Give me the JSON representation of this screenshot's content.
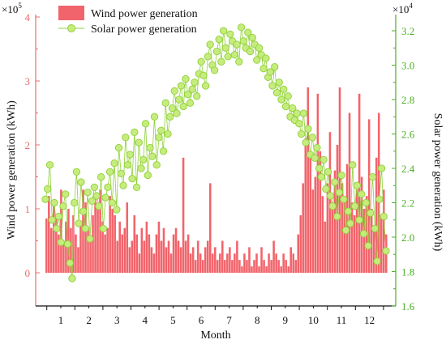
{
  "colors": {
    "wind": "#f2646b",
    "solar": "#8fd03a",
    "solar_fill": "#c6ec7d",
    "left_axis": "#e86c6c",
    "right_axis": "#4caf24",
    "text": "#111111"
  },
  "chart_data": {
    "type": "bar+line-scatter",
    "xlabel": "Month",
    "ylabel_left": "Wind power generation (kWh)",
    "ylabel_right": "Solar power generation (kWh)",
    "left_multiplier": "×10",
    "left_exponent": "5",
    "right_multiplier": "×10",
    "right_exponent": "4",
    "left_ylim": [
      -0.55,
      4.0
    ],
    "left_ticks": [
      "0",
      "1",
      "2",
      "3",
      "4"
    ],
    "right_ylim": [
      1.6,
      3.3
    ],
    "right_ticks": [
      "1.6",
      "1.8",
      "2.0",
      "2.2",
      "2.4",
      "2.6",
      "2.8",
      "3.0",
      "3.2"
    ],
    "x_ticks": [
      "1",
      "2",
      "3",
      "4",
      "5",
      "6",
      "7",
      "8",
      "9",
      "10",
      "11",
      "12"
    ],
    "legend": {
      "position": "top",
      "entries": [
        "Wind power generation",
        "Solar power generation"
      ]
    },
    "series": [
      {
        "name": "Wind power generation",
        "kind": "bar",
        "axis": "left",
        "unit": "×10^5 kWh",
        "values": [
          0.85,
          1.2,
          0.7,
          1.1,
          0.9,
          0.6,
          1.3,
          0.5,
          0.8,
          1.0,
          0.7,
          0.9,
          0.6,
          0.4,
          0.8,
          1.3,
          1.1,
          0.7,
          0.5,
          0.9,
          1.2,
          1.0,
          1.3,
          0.8,
          0.6,
          0.7,
          1.2,
          1.0,
          0.9,
          0.5,
          0.8,
          0.6,
          0.7,
          1.1,
          0.4,
          0.5,
          0.9,
          0.6,
          0.3,
          0.7,
          0.5,
          0.8,
          0.6,
          0.4,
          0.3,
          0.6,
          0.8,
          0.5,
          0.7,
          0.4,
          0.5,
          0.3,
          0.6,
          0.7,
          0.5,
          0.4,
          1.8,
          0.5,
          0.6,
          0.3,
          0.4,
          0.2,
          0.5,
          0.3,
          0.2,
          0.4,
          0.5,
          1.4,
          0.3,
          0.4,
          0.2,
          0.3,
          0.5,
          0.2,
          0.3,
          0.4,
          0.2,
          0.3,
          0.5,
          0.2,
          0.1,
          0.3,
          0.2,
          0.4,
          0.1,
          0.2,
          0.3,
          0.1,
          0.4,
          0.2,
          0.1,
          0.3,
          0.2,
          0.5,
          0.3,
          0.2,
          0.1,
          0.3,
          0.2,
          0.1,
          0.4,
          0.3,
          0.2,
          0.6,
          0.9,
          1.4,
          2.1,
          2.9,
          1.8,
          1.3,
          1.5,
          2.8,
          1.9,
          1.2,
          0.8,
          1.4,
          2.2,
          1.0,
          1.6,
          2.0,
          2.9,
          1.4,
          1.2,
          1.7,
          2.5,
          1.1,
          0.9,
          1.3,
          2.8,
          1.5,
          1.0,
          1.2,
          2.4,
          1.0,
          0.7,
          1.8,
          2.5,
          0.9,
          1.3,
          0.6
        ]
      },
      {
        "name": "Solar power generation",
        "kind": "line+marker",
        "axis": "right",
        "unit": "×10^4 kWh",
        "values": [
          2.22,
          2.28,
          2.42,
          2.1,
          2.2,
          2.05,
          2.12,
          1.97,
          2.18,
          2.25,
          1.96,
          1.85,
          1.76,
          2.2,
          2.38,
          2.08,
          2.32,
          2.15,
          2.05,
          2.26,
          1.99,
          2.21,
          2.29,
          2.24,
          2.18,
          2.35,
          2.05,
          2.23,
          2.29,
          2.38,
          2.2,
          2.43,
          2.16,
          2.52,
          2.37,
          2.3,
          2.58,
          2.42,
          2.48,
          2.34,
          2.61,
          2.29,
          2.55,
          2.4,
          2.45,
          2.66,
          2.36,
          2.52,
          2.47,
          2.7,
          2.42,
          2.58,
          2.62,
          2.5,
          2.78,
          2.6,
          2.7,
          2.75,
          2.85,
          2.72,
          2.8,
          2.88,
          2.76,
          2.92,
          2.83,
          2.78,
          2.86,
          2.9,
          2.82,
          2.95,
          3.02,
          2.94,
          2.88,
          3.05,
          3.12,
          3.0,
          2.97,
          3.08,
          3.15,
          3.02,
          3.2,
          3.1,
          3.05,
          3.18,
          3.14,
          3.06,
          3.12,
          3.02,
          3.22,
          3.14,
          3.1,
          3.19,
          3.08,
          3.16,
          3.12,
          3.03,
          3.1,
          3.06,
          2.98,
          3.04,
          2.93,
          2.96,
          2.88,
          2.99,
          2.84,
          2.9,
          2.8,
          2.86,
          2.76,
          2.82,
          2.7,
          2.75,
          2.68,
          2.72,
          2.66,
          2.6,
          2.72,
          2.55,
          2.63,
          2.48,
          2.58,
          2.46,
          2.52,
          2.4,
          2.35,
          2.45,
          2.28,
          2.38,
          2.24,
          2.18,
          2.32,
          2.12,
          2.26,
          2.36,
          2.22,
          2.04,
          2.15,
          2.08,
          2.42,
          2.18,
          2.3,
          2.1,
          2.25,
          2.02,
          2.2,
          1.95,
          2.14,
          2.35,
          2.05,
          1.86,
          2.22,
          2.4,
          2.12,
          1.92
        ]
      }
    ]
  }
}
